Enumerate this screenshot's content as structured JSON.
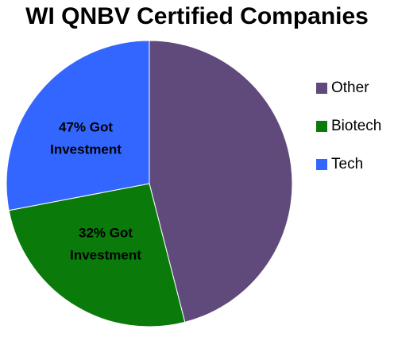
{
  "chart_data": {
    "type": "pie",
    "title": "WI QNBV Certified Companies",
    "categories": [
      "Other",
      "Biotech",
      "Tech"
    ],
    "values": [
      46,
      26,
      28
    ],
    "colors": [
      "#604a7b",
      "#0a7a0a",
      "#3366ff"
    ],
    "annotations": [
      [
        "32% Got",
        "Investment"
      ],
      [
        "47% Got",
        "Investment"
      ]
    ]
  }
}
